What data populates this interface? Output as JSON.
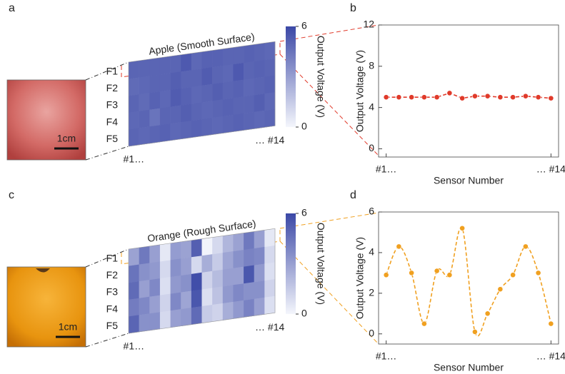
{
  "chart_data": [
    {
      "type": "heatmap",
      "panel": "a",
      "label": "Apple (Smooth Surface)",
      "label_color": "#d9342b",
      "scale_bar": "1cm",
      "rows": [
        "F1",
        "F2",
        "F3",
        "F4",
        "F5"
      ],
      "categories": [
        "#1…",
        null,
        null,
        null,
        null,
        null,
        null,
        null,
        null,
        null,
        null,
        null,
        null,
        "… #14"
      ],
      "values": [
        [
          5.0,
          5.0,
          5.0,
          5.0,
          5.0,
          5.4,
          4.9,
          5.1,
          5.1,
          5.0,
          5.0,
          5.1,
          5.0,
          4.9
        ],
        [
          4.8,
          4.9,
          5.0,
          5.0,
          5.2,
          5.0,
          5.0,
          5.3,
          5.0,
          4.9,
          5.4,
          5.0,
          5.1,
          5.0
        ],
        [
          5.0,
          4.8,
          5.1,
          4.9,
          5.3,
          5.1,
          4.9,
          5.0,
          5.2,
          5.0,
          5.1,
          4.9,
          5.0,
          5.1
        ],
        [
          4.9,
          5.0,
          4.5,
          5.0,
          5.0,
          5.2,
          5.0,
          4.9,
          5.0,
          5.1,
          5.0,
          5.0,
          5.2,
          4.9
        ],
        [
          5.0,
          4.9,
          5.0,
          5.1,
          4.9,
          5.0,
          5.1,
          5.0,
          4.9,
          5.0,
          5.1,
          5.0,
          4.9,
          5.0
        ]
      ],
      "zlim": [
        0,
        6
      ],
      "zticks": [
        0,
        6
      ],
      "colorscale": [
        "#f4f6fc",
        "#3b48a6"
      ],
      "colorbar_label": "Output Voltage (V)"
    },
    {
      "type": "line",
      "panel": "b",
      "color": "#e03a2a",
      "smooth": false,
      "x": [
        1,
        2,
        3,
        4,
        5,
        6,
        7,
        8,
        9,
        10,
        11,
        12,
        13,
        14
      ],
      "values": [
        5.0,
        5.0,
        5.0,
        5.0,
        5.0,
        5.4,
        4.9,
        5.1,
        5.1,
        5.0,
        5.0,
        5.1,
        5.0,
        4.9
      ],
      "xlim": [
        0.4,
        14.6
      ],
      "ylim": [
        -0.8,
        12
      ],
      "yticks": [
        0,
        4,
        8,
        12
      ],
      "xticks": [
        {
          "value": 1,
          "label": "#1…"
        },
        {
          "value": 14,
          "label": "… #14"
        }
      ],
      "xlabel": "Sensor Number",
      "ylabel": "Output Voltage  (V)"
    },
    {
      "type": "heatmap",
      "panel": "c",
      "label": "Orange (Rough Surface)",
      "label_color": "#e8901a",
      "scale_bar": "1cm",
      "rows": [
        "F1",
        "F2",
        "F3",
        "F4",
        "F5"
      ],
      "categories": [
        "#1…",
        null,
        null,
        null,
        null,
        null,
        null,
        null,
        null,
        null,
        null,
        null,
        null,
        "… #14"
      ],
      "values": [
        [
          2.9,
          4.3,
          3.0,
          0.5,
          3.1,
          2.9,
          5.2,
          0.1,
          1.0,
          2.2,
          2.9,
          4.3,
          3.0,
          0.5
        ],
        [
          4.5,
          3.5,
          3.2,
          1.0,
          3.5,
          3.0,
          1.0,
          2.5,
          1.5,
          2.8,
          3.5,
          4.0,
          3.8,
          1.0
        ],
        [
          4.8,
          3.0,
          3.8,
          0.8,
          3.2,
          3.5,
          5.8,
          1.2,
          2.0,
          3.0,
          3.0,
          5.5,
          3.2,
          0.8
        ],
        [
          4.2,
          3.8,
          3.0,
          1.2,
          3.8,
          2.8,
          5.5,
          0.8,
          1.8,
          3.2,
          3.8,
          3.5,
          3.5,
          1.2
        ],
        [
          5.0,
          3.5,
          3.5,
          1.0,
          3.0,
          3.2,
          4.8,
          1.5,
          1.2,
          2.5,
          3.2,
          4.0,
          3.0,
          0.8
        ]
      ],
      "zlim": [
        0,
        6
      ],
      "zticks": [
        0,
        6
      ],
      "colorscale": [
        "#f4f6fc",
        "#3b48a6"
      ],
      "colorbar_label": "Output Voltage (V)"
    },
    {
      "type": "line",
      "panel": "d",
      "color": "#f0a020",
      "smooth": true,
      "x": [
        1,
        2,
        3,
        4,
        5,
        6,
        7,
        8,
        9,
        10,
        11,
        12,
        13,
        14
      ],
      "values": [
        2.9,
        4.3,
        3.0,
        0.5,
        3.1,
        2.9,
        5.2,
        0.1,
        1.0,
        2.2,
        2.9,
        4.3,
        3.0,
        0.5
      ],
      "xlim": [
        0.4,
        14.6
      ],
      "ylim": [
        -0.5,
        6
      ],
      "yticks": [
        0,
        2,
        4,
        6
      ],
      "xticks": [
        {
          "value": 1,
          "label": "#1…"
        },
        {
          "value": 14,
          "label": "… #14"
        }
      ],
      "xlabel": "Sensor Number",
      "ylabel": "Output Voltage  (V)"
    }
  ]
}
